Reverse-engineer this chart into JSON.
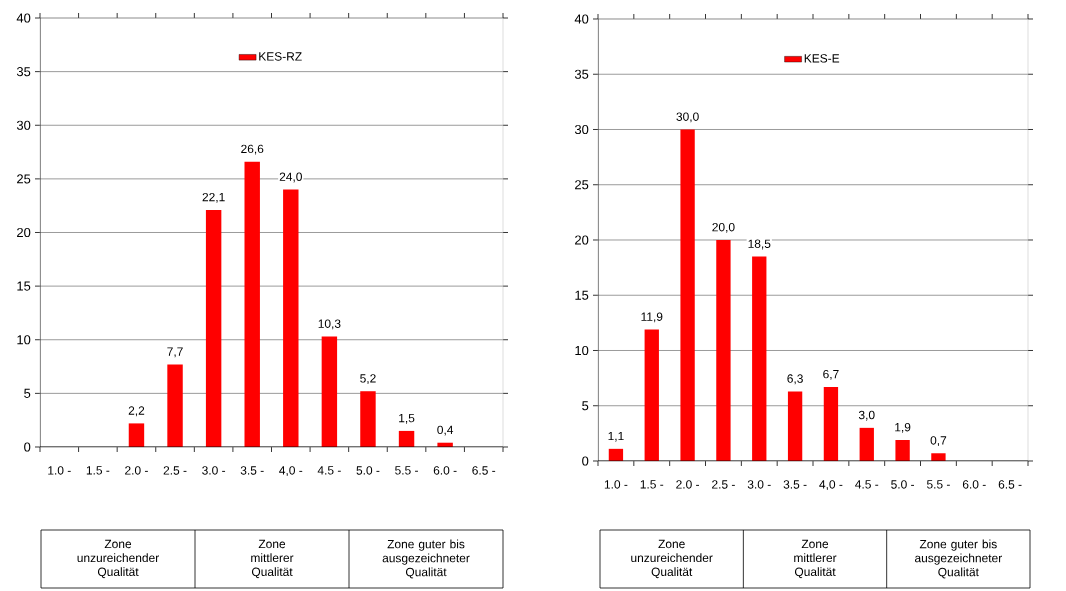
{
  "chart_data": [
    {
      "type": "bar",
      "categories": [
        "1.0 -",
        "1.5 -",
        "2.0 -",
        "2.5 -",
        "3.0 -",
        "3.5 -",
        "4,0 -",
        "4.5 -",
        "5.0 -",
        "5.5 -",
        "6.0 -",
        "6.5 -"
      ],
      "series": [
        {
          "name": "KES-RZ",
          "color": "#ff0000",
          "values": [
            null,
            null,
            2.2,
            7.7,
            22.1,
            26.6,
            24.0,
            10.3,
            5.2,
            1.5,
            0.4,
            null
          ],
          "value_labels": [
            null,
            null,
            "2,2",
            "7,7",
            "22,1",
            "26,6",
            "24,0",
            "10,3",
            "5,2",
            "1,5",
            "0,4",
            null
          ]
        }
      ],
      "ylim": [
        0,
        40
      ],
      "yticks": [
        0,
        5,
        10,
        15,
        20,
        25,
        30,
        35,
        40
      ],
      "grid": "y",
      "legend": "top",
      "annotations": [
        "Zone unzureichender Qualität",
        "Zone mittlerer Qualität",
        "Zone guter bis ausgezeichneter Qualität"
      ]
    },
    {
      "type": "bar",
      "categories": [
        "1.0 -",
        "1.5 -",
        "2.0 -",
        "2.5 -",
        "3.0 -",
        "3.5 -",
        "4,0 -",
        "4.5 -",
        "5.0 -",
        "5.5 -",
        "6.0 -",
        "6.5 -"
      ],
      "series": [
        {
          "name": "KES-E",
          "color": "#ff0000",
          "values": [
            1.1,
            11.9,
            30.0,
            20.0,
            18.5,
            6.3,
            6.7,
            3.0,
            1.9,
            0.7,
            null,
            null
          ],
          "value_labels": [
            "1,1",
            "11,9",
            "30,0",
            "20,0",
            "18,5",
            "6,3",
            "6,7",
            "3,0",
            "1,9",
            "0,7",
            null,
            null
          ]
        }
      ],
      "ylim": [
        0,
        40
      ],
      "yticks": [
        0,
        5,
        10,
        15,
        20,
        25,
        30,
        35,
        40
      ],
      "grid": "y",
      "legend": "top",
      "annotations": [
        "Zone unzureichender Qualität",
        "Zone mittlerer Qualität",
        "Zone guter bis ausgezeichneter Qualität"
      ]
    }
  ]
}
